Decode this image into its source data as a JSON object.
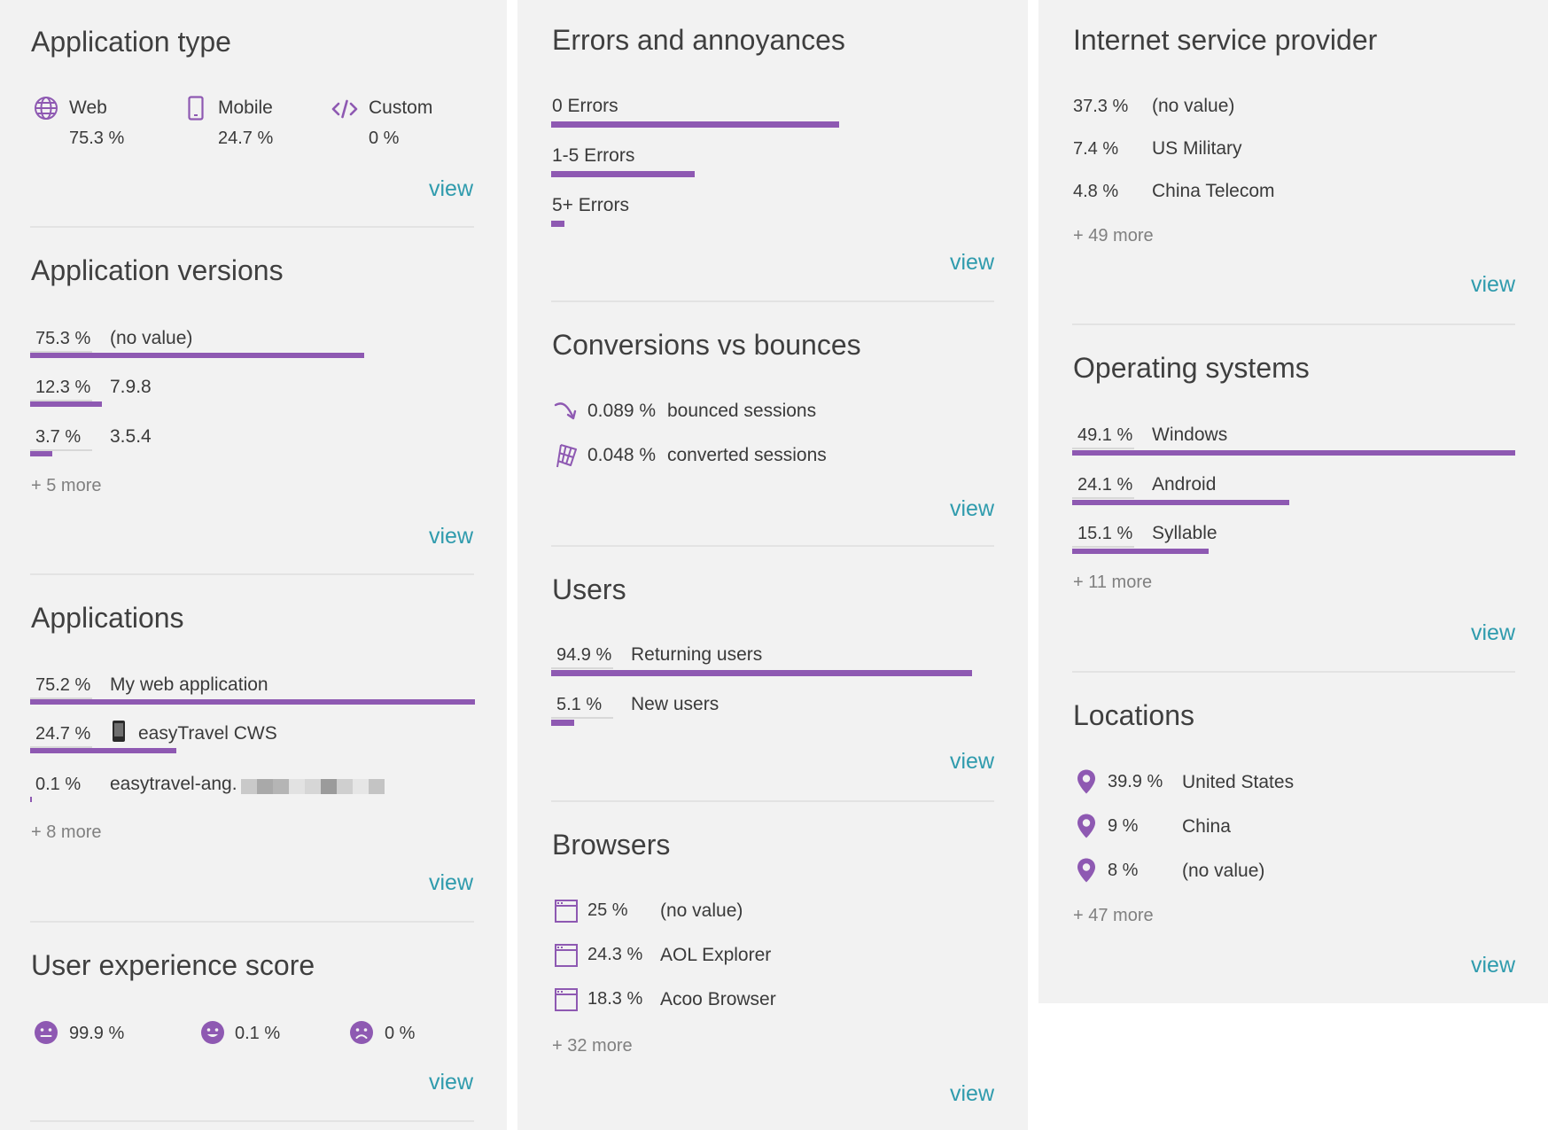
{
  "view_label": "view",
  "application_type": {
    "title": "Application type",
    "items": [
      {
        "label": "Web",
        "value": "75.3 %",
        "icon": "globe-icon"
      },
      {
        "label": "Mobile",
        "value": "24.7 %",
        "icon": "mobile-phone-icon"
      },
      {
        "label": "Custom",
        "value": "0 %",
        "icon": "code-icon"
      }
    ]
  },
  "application_versions": {
    "title": "Application versions",
    "rows": [
      {
        "pct": "75.3 %",
        "label": "(no value)",
        "share": 0.753
      },
      {
        "pct": "12.3 %",
        "label": "7.9.8",
        "share": 0.123
      },
      {
        "pct": "3.7 %",
        "label": "3.5.4",
        "share": 0.037
      }
    ],
    "more": "+ 5 more"
  },
  "applications": {
    "title": "Applications",
    "rows": [
      {
        "pct": "75.2 %",
        "label": "My web application",
        "share": 0.752
      },
      {
        "pct": "24.7 %",
        "label": "easyTravel CWS",
        "share": 0.247
      },
      {
        "pct": "0.1 %",
        "label": "easytravel-ang.",
        "share": 0.001
      }
    ],
    "more": "+ 8 more"
  },
  "user_experience": {
    "title": "User experience score",
    "items": [
      {
        "value": "99.9 %",
        "icon": "satisfied-face-icon"
      },
      {
        "value": "0.1 %",
        "icon": "tolerating-face-icon"
      },
      {
        "value": "0 %",
        "icon": "frustrated-face-icon"
      }
    ]
  },
  "errors": {
    "title": "Errors and annoyances",
    "rows": [
      {
        "label": "0 Errors",
        "share": 0.653
      },
      {
        "label": "1-5 Errors",
        "share": 0.326
      },
      {
        "label": "5+ Errors",
        "share": 0.03
      }
    ]
  },
  "conversions": {
    "title": "Conversions vs bounces",
    "rows": [
      {
        "pct": "0.089 %",
        "label": "bounced sessions",
        "icon": "bounce-arrow-icon"
      },
      {
        "pct": "0.048 %",
        "label": "converted sessions",
        "icon": "checkered-flag-icon"
      }
    ]
  },
  "users": {
    "title": "Users",
    "rows": [
      {
        "pct": "94.9 %",
        "label": "Returning users",
        "share": 0.949
      },
      {
        "pct": "5.1 %",
        "label": "New users",
        "share": 0.051
      }
    ]
  },
  "browsers": {
    "title": "Browsers",
    "rows": [
      {
        "pct": "25 %",
        "label": "(no value)",
        "icon": "browser-window-icon"
      },
      {
        "pct": "24.3 %",
        "label": "AOL Explorer",
        "icon": "browser-window-icon"
      },
      {
        "pct": "18.3 %",
        "label": "Acoo Browser",
        "icon": "browser-window-icon"
      }
    ],
    "more": "+ 32 more"
  },
  "isp": {
    "title": "Internet service provider",
    "rows": [
      {
        "pct": "37.3 %",
        "label": "(no value)"
      },
      {
        "pct": "7.4 %",
        "label": "US Military"
      },
      {
        "pct": "4.8 %",
        "label": "China Telecom"
      }
    ],
    "more": "+ 49 more"
  },
  "operating_systems": {
    "title": "Operating systems",
    "rows": [
      {
        "pct": "49.1 %",
        "label": "Windows",
        "share": 0.491
      },
      {
        "pct": "24.1 %",
        "label": "Android",
        "share": 0.241
      },
      {
        "pct": "15.1 %",
        "label": "Syllable",
        "share": 0.151
      }
    ],
    "more": "+ 11 more"
  },
  "locations": {
    "title": "Locations",
    "rows": [
      {
        "pct": "39.9 %",
        "label": "United States",
        "icon": "location-pin-icon"
      },
      {
        "pct": "9 %",
        "label": "China",
        "icon": "location-pin-icon"
      },
      {
        "pct": "8 %",
        "label": "(no value)",
        "icon": "location-pin-icon"
      }
    ],
    "more": "+ 47 more"
  },
  "colors": {
    "accent": "#8e59b2",
    "link": "#2f9bad",
    "panel": "#f2f2f2"
  }
}
